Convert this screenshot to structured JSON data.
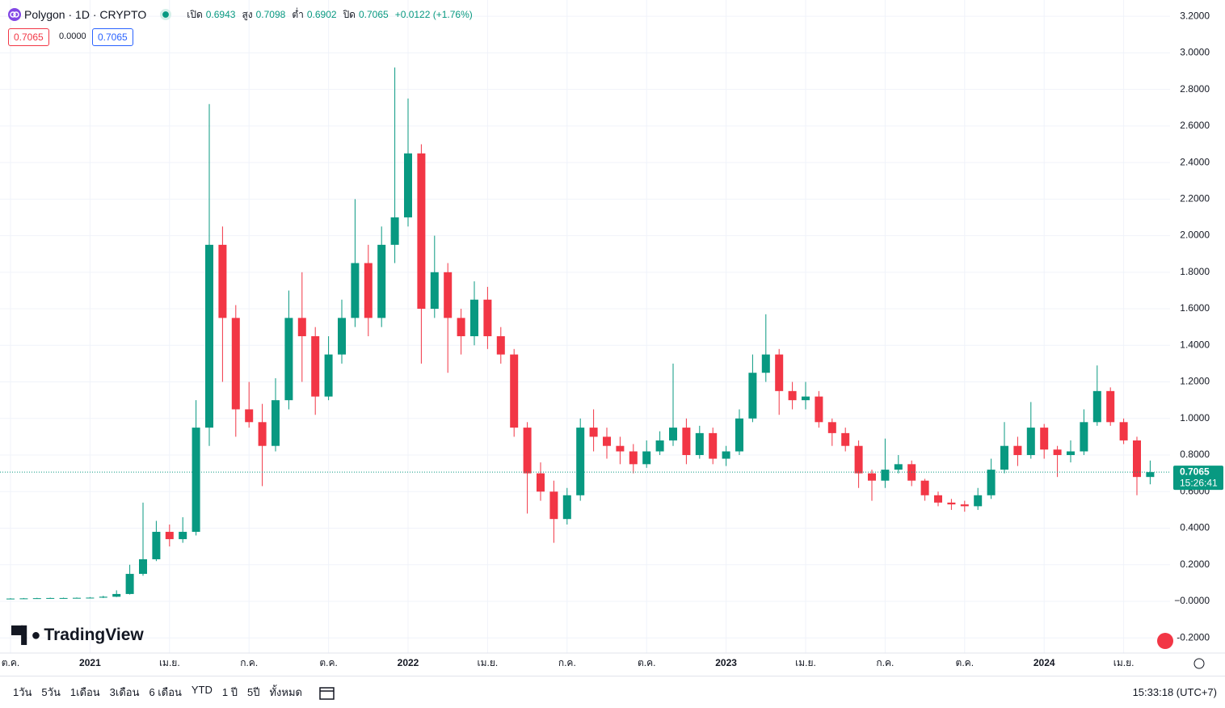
{
  "chart_data": {
    "type": "candlestick",
    "title": "Polygon · 1D · CRYPTO",
    "ohlc": {
      "open_label": "เปิด",
      "open": 0.6943,
      "high_label": "สูง",
      "high": 0.7098,
      "low_label": "ต่ำ",
      "low": 0.6902,
      "close_label": "ปิด",
      "close": 0.7065,
      "change": "+0.0122 (+1.76%)"
    },
    "boxes": [
      "0.7065",
      "0.0000",
      "0.7065"
    ],
    "last_price": 0.7065,
    "countdown": "15:26:41",
    "up_color": "#089981",
    "down_color": "#f23645",
    "categories": [
      "ต.ค.",
      null,
      null,
      null,
      null,
      null,
      "2021",
      null,
      null,
      null,
      null,
      null,
      "เม.ย.",
      null,
      null,
      null,
      null,
      null,
      "ก.ค.",
      null,
      null,
      null,
      null,
      null,
      "ต.ค.",
      null,
      null,
      null,
      null,
      null,
      "2022",
      null,
      null,
      null,
      null,
      null,
      "เม.ย.",
      null,
      null,
      null,
      null,
      null,
      "ก.ค.",
      null,
      null,
      null,
      null,
      null,
      "ต.ค.",
      null,
      null,
      null,
      null,
      null,
      "2023",
      null,
      null,
      null,
      null,
      null,
      "เม.ย.",
      null,
      null,
      null,
      null,
      null,
      "ก.ค.",
      null,
      null,
      null,
      null,
      null,
      "ต.ค.",
      null,
      null,
      null,
      null,
      null,
      "2024",
      null,
      null,
      null,
      null,
      null,
      "เม.ย.",
      null,
      null
    ],
    "open": [
      0.014,
      0.015,
      0.016,
      0.017,
      0.018,
      0.018,
      0.019,
      0.02,
      0.025,
      0.04,
      0.15,
      0.23,
      0.38,
      0.34,
      0.38,
      0.95,
      1.95,
      1.55,
      1.05,
      0.98,
      0.85,
      1.1,
      1.55,
      1.45,
      1.12,
      1.35,
      1.55,
      1.85,
      1.55,
      1.95,
      2.1,
      2.45,
      1.6,
      1.8,
      1.55,
      1.45,
      1.65,
      1.45,
      1.35,
      0.95,
      0.7,
      0.6,
      0.45,
      0.58,
      0.95,
      0.9,
      0.85,
      0.82,
      0.75,
      0.82,
      0.88,
      0.95,
      0.8,
      0.92,
      0.78,
      0.82,
      1.0,
      1.25,
      1.35,
      1.15,
      1.1,
      1.12,
      0.98,
      0.92,
      0.85,
      0.7,
      0.66,
      0.72,
      0.75,
      0.66,
      0.58,
      0.54,
      0.53,
      0.52,
      0.58,
      0.72,
      0.85,
      0.8,
      0.95,
      0.83,
      0.8,
      0.82,
      0.98,
      1.15,
      0.98,
      0.88,
      0.68
    ],
    "high": [
      0.017,
      0.018,
      0.019,
      0.02,
      0.02,
      0.021,
      0.023,
      0.03,
      0.06,
      0.2,
      0.54,
      0.44,
      0.42,
      0.46,
      1.1,
      2.72,
      2.05,
      1.62,
      1.2,
      1.08,
      1.22,
      1.7,
      1.8,
      1.5,
      1.45,
      1.65,
      2.2,
      1.95,
      2.05,
      2.92,
      2.75,
      2.5,
      2.0,
      1.85,
      1.6,
      1.75,
      1.72,
      1.5,
      1.38,
      0.98,
      0.76,
      0.66,
      0.62,
      1.0,
      1.05,
      0.95,
      0.9,
      0.86,
      0.88,
      0.93,
      1.3,
      1.0,
      0.96,
      0.95,
      0.85,
      1.05,
      1.35,
      1.57,
      1.38,
      1.2,
      1.2,
      1.15,
      1.0,
      0.95,
      0.88,
      0.72,
      0.89,
      0.8,
      0.77,
      0.67,
      0.6,
      0.56,
      0.55,
      0.62,
      0.78,
      0.98,
      0.9,
      1.09,
      0.97,
      0.85,
      0.88,
      1.05,
      1.29,
      1.17,
      1.0,
      0.9,
      0.77
    ],
    "low": [
      0.012,
      0.013,
      0.014,
      0.015,
      0.016,
      0.016,
      0.017,
      0.018,
      0.023,
      0.037,
      0.14,
      0.22,
      0.3,
      0.32,
      0.36,
      0.85,
      1.2,
      0.9,
      0.95,
      0.63,
      0.82,
      1.05,
      1.2,
      1.02,
      1.1,
      1.3,
      1.5,
      1.45,
      1.5,
      1.85,
      2.05,
      1.3,
      1.55,
      1.25,
      1.35,
      1.4,
      1.38,
      1.3,
      0.9,
      0.48,
      0.55,
      0.32,
      0.42,
      0.55,
      0.82,
      0.78,
      0.75,
      0.7,
      0.73,
      0.8,
      0.85,
      0.75,
      0.78,
      0.75,
      0.74,
      0.8,
      0.98,
      1.2,
      1.02,
      1.05,
      1.05,
      0.95,
      0.85,
      0.82,
      0.62,
      0.55,
      0.62,
      0.7,
      0.63,
      0.55,
      0.52,
      0.5,
      0.49,
      0.5,
      0.56,
      0.7,
      0.74,
      0.78,
      0.78,
      0.68,
      0.76,
      0.8,
      0.96,
      0.96,
      0.86,
      0.58,
      0.64
    ],
    "close": [
      0.015,
      0.016,
      0.017,
      0.018,
      0.018,
      0.019,
      0.02,
      0.025,
      0.04,
      0.15,
      0.23,
      0.38,
      0.34,
      0.38,
      0.95,
      1.95,
      1.55,
      1.05,
      0.98,
      0.85,
      1.1,
      1.55,
      1.45,
      1.12,
      1.35,
      1.55,
      1.85,
      1.55,
      1.95,
      2.1,
      2.45,
      1.6,
      1.8,
      1.55,
      1.45,
      1.65,
      1.45,
      1.35,
      0.95,
      0.7,
      0.6,
      0.45,
      0.58,
      0.95,
      0.9,
      0.85,
      0.82,
      0.75,
      0.82,
      0.88,
      0.95,
      0.8,
      0.92,
      0.78,
      0.82,
      1.0,
      1.25,
      1.35,
      1.15,
      1.1,
      1.12,
      0.98,
      0.92,
      0.85,
      0.7,
      0.66,
      0.72,
      0.75,
      0.66,
      0.58,
      0.54,
      0.53,
      0.52,
      0.58,
      0.72,
      0.85,
      0.8,
      0.95,
      0.83,
      0.8,
      0.82,
      0.98,
      1.15,
      0.98,
      0.88,
      0.68,
      0.7065
    ],
    "ylim": [
      -0.283,
      3.289
    ],
    "yticks": [
      {
        "value": 3.2,
        "label": "3.2000"
      },
      {
        "value": 3.0,
        "label": "3.0000"
      },
      {
        "value": 2.8,
        "label": "2.8000"
      },
      {
        "value": 2.6,
        "label": "2.6000"
      },
      {
        "value": 2.4,
        "label": "2.4000"
      },
      {
        "value": 2.2,
        "label": "2.2000"
      },
      {
        "value": 2.0,
        "label": "2.0000"
      },
      {
        "value": 1.8,
        "label": "1.8000"
      },
      {
        "value": 1.6,
        "label": "1.6000"
      },
      {
        "value": 1.4,
        "label": "1.4000"
      },
      {
        "value": 1.2,
        "label": "1.2000"
      },
      {
        "value": 1.0,
        "label": "1.0000"
      },
      {
        "value": 0.8,
        "label": "0.8000"
      },
      {
        "value": 0.6,
        "label": "0.6000"
      },
      {
        "value": 0.4,
        "label": "0.4000"
      },
      {
        "value": 0.2,
        "label": "0.2000"
      },
      {
        "value": 0,
        "label": "−0.0000"
      },
      {
        "value": -0.2,
        "label": "-0.2000"
      }
    ],
    "grid": true
  },
  "brand": "TradingView",
  "toolbar": {
    "ranges": [
      "1วัน",
      "5วัน",
      "1เดือน",
      "3เดือน",
      "6 เดือน",
      "YTD",
      "1 ปี",
      "5ปี",
      "ทั้งหมด"
    ],
    "clock": "15:33:18 (UTC+7)"
  }
}
